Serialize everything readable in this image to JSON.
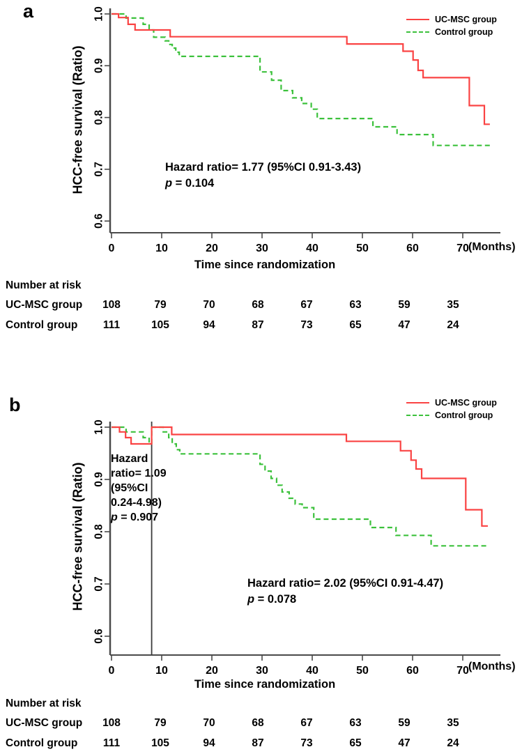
{
  "colors": {
    "ucmsc": "#fa4343",
    "control": "#3cc13c",
    "axis": "#4a4a4a",
    "landmark_line": "#3b3b3b",
    "text": "#000000"
  },
  "panels": {
    "a": {
      "label": "a",
      "legend": [
        {
          "label": "UC-MSC group",
          "style": "solid-red"
        },
        {
          "label": "Control group",
          "style": "dashed-green"
        }
      ],
      "ylabel": "HCC-free survival (Ratio)",
      "xlabel": "Time since randomization",
      "months_label": "(Months)",
      "annotation": {
        "text": "Hazard ratio= 1.77 (95%CI 0.91-3.43)",
        "p": "p",
        "p_rest": " = 0.104"
      },
      "risk": {
        "title": "Number at risk",
        "rows": [
          {
            "label": "UC-MSC group",
            "values": [
              "108",
              "79",
              "70",
              "68",
              "67",
              "63",
              "59",
              "35"
            ]
          },
          {
            "label": "Control group",
            "values": [
              "111",
              "105",
              "94",
              "87",
              "73",
              "65",
              "47",
              "24"
            ]
          }
        ]
      }
    },
    "b": {
      "label": "b",
      "legend": [
        {
          "label": "UC-MSC group",
          "style": "solid-red"
        },
        {
          "label": "Control group",
          "style": "dashed-green"
        }
      ],
      "ylabel": "HCC-free survival (Ratio)",
      "xlabel": "Time since randomization",
      "months_label": "(Months)",
      "annotation_left": {
        "lines": [
          "Hazard",
          "ratio= 1.09",
          "(95%CI",
          "0.24-4.98)"
        ],
        "p": "p",
        "p_rest": " = 0.907"
      },
      "annotation": {
        "text": "Hazard ratio= 2.02 (95%CI 0.91-4.47)",
        "p": "p",
        "p_rest": " = 0.078"
      },
      "risk": {
        "title": "Number at risk",
        "rows": [
          {
            "label": "UC-MSC group",
            "values": [
              "108",
              "79",
              "70",
              "68",
              "67",
              "63",
              "59",
              "35"
            ]
          },
          {
            "label": "Control group",
            "values": [
              "111",
              "105",
              "94",
              "87",
              "73",
              "65",
              "47",
              "24"
            ]
          }
        ]
      }
    }
  },
  "chart_data": [
    {
      "panel": "a",
      "type": "line",
      "subtype": "kaplan-meier-step",
      "xlabel": "Time since randomization",
      "x_unit": "(Months)",
      "ylabel": "HCC-free survival (Ratio)",
      "xlim": [
        0,
        77.5
      ],
      "ylim": [
        0.6,
        1.0
      ],
      "xticks": [
        0,
        10,
        20,
        30,
        40,
        50,
        60,
        70
      ],
      "yticks": [
        "1.0",
        "0.9",
        "0.8",
        "0.7",
        "0.6"
      ],
      "grid": false,
      "legend_position": "top-right",
      "annotations": [
        "Hazard ratio= 1.77 (95%CI 0.91-3.43)",
        "p = 0.104"
      ],
      "series": [
        {
          "name": "UC-MSC group",
          "color": "#fa4343",
          "dash": "solid",
          "end_x": 75.4,
          "steps": [
            [
              0,
              1.0
            ],
            [
              1.4,
              0.993
            ],
            [
              3.3,
              0.98
            ],
            [
              4.7,
              0.969
            ],
            [
              11.7,
              0.956
            ],
            [
              46.9,
              0.942
            ],
            [
              58.1,
              0.928
            ],
            [
              60.1,
              0.911
            ],
            [
              61.1,
              0.891
            ],
            [
              62.1,
              0.877
            ],
            [
              71.3,
              0.823
            ],
            [
              74.3,
              0.787
            ]
          ]
        },
        {
          "name": "Control group",
          "color": "#3cc13c",
          "dash": "dashed",
          "end_x": 75.4,
          "steps": [
            [
              0,
              1.0
            ],
            [
              2.9,
              0.992
            ],
            [
              6.3,
              0.98
            ],
            [
              7.5,
              0.969
            ],
            [
              8.4,
              0.955
            ],
            [
              10.7,
              0.948
            ],
            [
              11.4,
              0.941
            ],
            [
              12.1,
              0.934
            ],
            [
              12.8,
              0.926
            ],
            [
              13.5,
              0.918
            ],
            [
              29.6,
              0.888
            ],
            [
              31.9,
              0.872
            ],
            [
              33.8,
              0.852
            ],
            [
              36.1,
              0.838
            ],
            [
              37.9,
              0.827
            ],
            [
              39.8,
              0.816
            ],
            [
              41.0,
              0.798
            ],
            [
              52.1,
              0.782
            ],
            [
              56.9,
              0.767
            ],
            [
              64.1,
              0.746
            ]
          ]
        }
      ],
      "number_at_risk": {
        "times": [
          0,
          10,
          20,
          30,
          40,
          50,
          60,
          70
        ],
        "UC-MSC group": [
          108,
          79,
          70,
          68,
          67,
          63,
          59,
          35
        ],
        "Control group": [
          111,
          105,
          94,
          87,
          73,
          65,
          47,
          24
        ]
      }
    },
    {
      "panel": "b",
      "type": "line",
      "subtype": "kaplan-meier-step-landmark",
      "landmark_x": 8,
      "xlabel": "Time since randomization",
      "x_unit": "(Months)",
      "ylabel": "HCC-free survival (Ratio)",
      "xlim": [
        0,
        77.5
      ],
      "ylim": [
        0.6,
        1.0
      ],
      "xticks": [
        0,
        10,
        20,
        30,
        40,
        50,
        60,
        70
      ],
      "yticks": [
        "1.0",
        "0.9",
        "0.8",
        "0.7",
        "0.6"
      ],
      "grid": false,
      "legend_position": "top-right",
      "annotations": [
        "Hazard ratio= 1.09 (95%CI 0.24-4.98) p = 0.907",
        "Hazard ratio= 2.02 (95%CI 0.91-4.47) p = 0.078"
      ],
      "series": [
        {
          "name": "UC-MSC group",
          "color": "#fa4343",
          "dash": "solid",
          "end_x": 75.0,
          "steps": [
            [
              0,
              1.0
            ],
            [
              1.6,
              0.991
            ],
            [
              2.8,
              0.98
            ],
            [
              3.9,
              0.968
            ],
            [
              8,
              1.0
            ],
            [
              12.0,
              0.986
            ],
            [
              46.8,
              0.973
            ],
            [
              57.6,
              0.955
            ],
            [
              59.7,
              0.937
            ],
            [
              60.7,
              0.92
            ],
            [
              61.8,
              0.902
            ],
            [
              70.6,
              0.842
            ],
            [
              73.8,
              0.811
            ]
          ]
        },
        {
          "name": "Control group",
          "color": "#3cc13c",
          "dash": "dashed",
          "end_x": 75.0,
          "steps": [
            [
              0,
              1.0
            ],
            [
              2.9,
              0.991
            ],
            [
              6.3,
              0.98
            ],
            [
              7.5,
              0.969
            ],
            [
              8,
              1.0
            ],
            [
              10.3,
              0.991
            ],
            [
              11.4,
              0.98
            ],
            [
              12.1,
              0.968
            ],
            [
              12.9,
              0.957
            ],
            [
              13.6,
              0.949
            ],
            [
              29.6,
              0.929
            ],
            [
              30.6,
              0.916
            ],
            [
              31.8,
              0.902
            ],
            [
              32.9,
              0.889
            ],
            [
              34.0,
              0.876
            ],
            [
              35.4,
              0.864
            ],
            [
              36.6,
              0.853
            ],
            [
              38.0,
              0.846
            ],
            [
              40.3,
              0.824
            ],
            [
              51.6,
              0.808
            ],
            [
              56.7,
              0.793
            ],
            [
              63.7,
              0.773
            ]
          ]
        }
      ],
      "number_at_risk": {
        "times": [
          0,
          10,
          20,
          30,
          40,
          50,
          60,
          70
        ],
        "UC-MSC group": [
          108,
          79,
          70,
          68,
          67,
          63,
          59,
          35
        ],
        "Control group": [
          111,
          105,
          94,
          87,
          73,
          65,
          47,
          24
        ]
      }
    }
  ]
}
